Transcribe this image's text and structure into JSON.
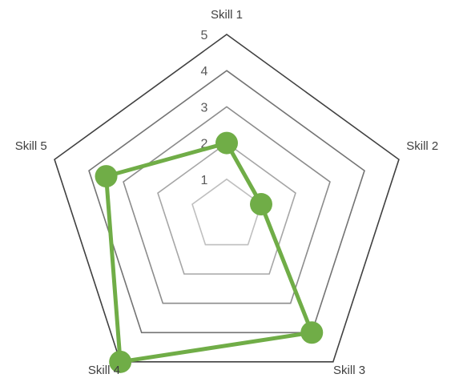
{
  "chart_data": {
    "type": "radar",
    "categories": [
      "Skill 1",
      "Skill 2",
      "Skill 3",
      "Skill 4",
      "Skill 5"
    ],
    "series": [
      {
        "values": [
          2,
          1,
          4,
          5,
          3.5
        ],
        "color": "#70ad47"
      }
    ],
    "rlim": [
      0,
      5
    ],
    "ticks": [
      "1",
      "2",
      "3",
      "4",
      "5"
    ],
    "grid_colors": [
      "#bfbfbf",
      "#a6a6a6",
      "#8c8c8c",
      "#737373",
      "#404040"
    ],
    "legend": "none"
  }
}
